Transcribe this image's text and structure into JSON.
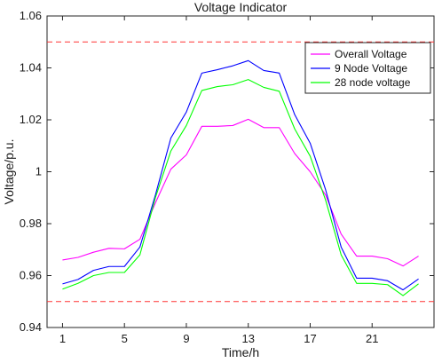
{
  "chart_data": {
    "type": "line",
    "title": "Voltage Indicator",
    "xlabel": "Time/h",
    "ylabel": "Voltage/p.u.",
    "xlim": [
      0,
      25
    ],
    "ylim": [
      0.94,
      1.06
    ],
    "x_ticks": [
      1,
      5,
      9,
      13,
      17,
      21
    ],
    "y_ticks": [
      0.94,
      0.96,
      0.98,
      1.0,
      1.02,
      1.04,
      1.06
    ],
    "y_tick_labels": [
      "0.94",
      "0.96",
      "0.98",
      "1",
      "1.02",
      "1.04",
      "1.06"
    ],
    "grid": false,
    "legend_position": "top-right",
    "x": [
      1,
      2,
      3,
      4,
      5,
      6,
      7,
      8,
      9,
      10,
      11,
      12,
      13,
      14,
      15,
      16,
      17,
      18,
      19,
      20,
      21,
      22,
      23,
      24
    ],
    "series": [
      {
        "name": "Overall Voltage",
        "color": "#ff00ff",
        "values": [
          0.966,
          0.967,
          0.969,
          0.9705,
          0.9703,
          0.974,
          0.988,
          1.001,
          1.0065,
          1.0175,
          1.0175,
          1.0178,
          1.0202,
          1.017,
          1.017,
          1.007,
          1.0,
          0.991,
          0.976,
          0.9675,
          0.9675,
          0.9665,
          0.9637,
          0.9675
        ]
      },
      {
        "name": "9 Node Voltage",
        "color": "#0000ff",
        "values": [
          0.9568,
          0.9585,
          0.962,
          0.9635,
          0.9635,
          0.971,
          0.991,
          1.013,
          1.023,
          1.038,
          1.0393,
          1.0408,
          1.0428,
          1.039,
          1.038,
          1.022,
          1.011,
          0.993,
          0.971,
          0.959,
          0.959,
          0.958,
          0.9545,
          0.9587
        ]
      },
      {
        "name": "28 node voltage",
        "color": "#00ff00",
        "values": [
          0.9548,
          0.957,
          0.96,
          0.9612,
          0.9612,
          0.968,
          0.99,
          1.008,
          1.0178,
          1.0313,
          1.0328,
          1.0335,
          1.0355,
          1.0325,
          1.031,
          1.0165,
          1.006,
          0.989,
          0.968,
          0.957,
          0.957,
          0.9565,
          0.9523,
          0.9568
        ]
      }
    ],
    "reference_lines": [
      {
        "y": 1.05,
        "color": "#ff3333",
        "style": "dashed"
      },
      {
        "y": 0.95,
        "color": "#ff3333",
        "style": "dashed"
      }
    ]
  }
}
